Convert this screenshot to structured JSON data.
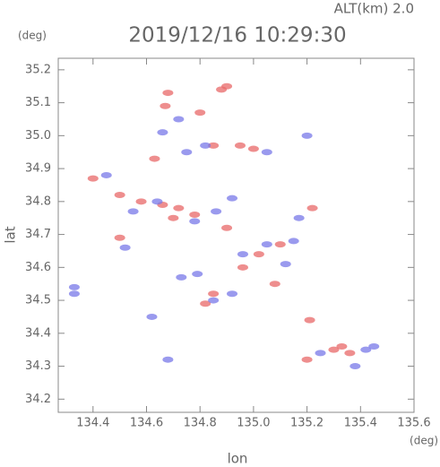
{
  "chart_data": {
    "type": "scatter",
    "header": "ALT(km) 2.0",
    "title": "2019/12/16 10:29:30",
    "y_unit": "(deg)",
    "x_unit": "(deg)",
    "x_label": "lon",
    "y_label": "lat",
    "xlim": [
      134.27,
      135.6
    ],
    "ylim": [
      34.16,
      35.235
    ],
    "xticks": [
      {
        "value": 134.4,
        "label": "134.4"
      },
      {
        "value": 134.6,
        "label": "134.6"
      },
      {
        "value": 134.8,
        "label": "134.8"
      },
      {
        "value": 135.0,
        "label": "135.0"
      },
      {
        "value": 135.2,
        "label": "135.2"
      },
      {
        "value": 135.4,
        "label": "135.4"
      },
      {
        "value": 135.6,
        "label": "135.6"
      }
    ],
    "yticks": [
      {
        "value": 34.2,
        "label": "34.2"
      },
      34.3,
      34.4,
      34.5,
      34.6,
      34.7,
      34.8,
      34.9,
      {
        "value": 35.0,
        "label": "35.0"
      },
      35.1,
      35.2
    ],
    "series": [
      {
        "color": "#e86868",
        "x": [
          134.88,
          134.9,
          134.67,
          134.68,
          135.0,
          134.95,
          134.85,
          134.5,
          134.72,
          134.78,
          134.66,
          134.4,
          135.1,
          135.02,
          134.96,
          134.85,
          134.82,
          135.3,
          135.33,
          135.2,
          135.36,
          135.22,
          134.58,
          134.9,
          134.5,
          134.63,
          135.21,
          134.8,
          135.08,
          134.7
        ],
        "values": [
          35.14,
          35.15,
          35.09,
          35.13,
          34.96,
          34.97,
          34.97,
          34.82,
          34.78,
          34.76,
          34.79,
          34.87,
          34.67,
          34.64,
          34.6,
          34.52,
          34.49,
          34.35,
          34.36,
          34.32,
          34.34,
          34.78,
          34.8,
          34.72,
          34.69,
          34.93,
          34.44,
          35.07,
          34.55,
          34.75
        ]
      },
      {
        "color": "#7878e8",
        "x": [
          134.33,
          134.33,
          134.52,
          134.72,
          134.66,
          135.2,
          134.45,
          134.82,
          134.75,
          135.05,
          134.85,
          134.92,
          135.38,
          135.42,
          135.45,
          135.25,
          135.05,
          134.96,
          134.79,
          134.73,
          134.78,
          134.64,
          134.55,
          135.17,
          134.62,
          134.68,
          135.15,
          134.92,
          135.12,
          134.86
        ],
        "values": [
          34.54,
          34.52,
          34.66,
          35.05,
          35.01,
          35.0,
          34.88,
          34.97,
          34.95,
          34.95,
          34.5,
          34.52,
          34.3,
          34.35,
          34.36,
          34.34,
          34.67,
          34.64,
          34.58,
          34.57,
          34.74,
          34.8,
          34.77,
          34.75,
          34.45,
          34.32,
          34.68,
          34.81,
          34.61,
          34.77
        ]
      }
    ]
  }
}
